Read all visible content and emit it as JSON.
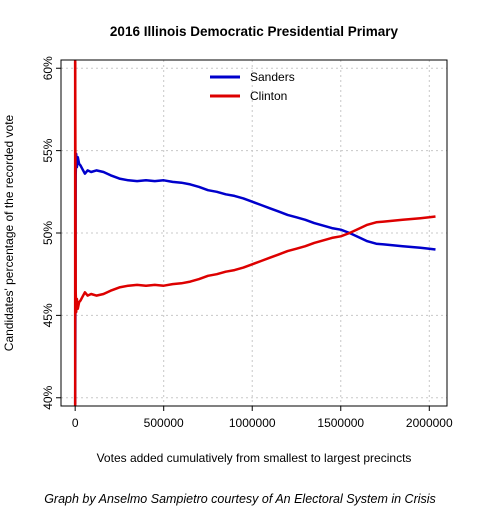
{
  "chart_data": {
    "type": "line",
    "title": "2016 Illinois Democratic Presidential Primary",
    "xlabel": "Votes added cumulatively from smallest to largest precincts",
    "ylabel": "Candidates' percentage of the recorded vote",
    "xlim": [
      -80000,
      2100000
    ],
    "ylim": [
      39.5,
      60.5
    ],
    "x_ticks": [
      0,
      500000,
      1000000,
      1500000,
      2000000
    ],
    "x_tick_labels": [
      "0",
      "500000",
      "1000000",
      "1500000",
      "2000000"
    ],
    "y_ticks": [
      40,
      45,
      50,
      55,
      60
    ],
    "y_tick_labels": [
      "40%",
      "45%",
      "50%",
      "55%",
      "60%"
    ],
    "grid": true,
    "legend_position": "top-center",
    "vline_x": 0,
    "series": [
      {
        "name": "Sanders",
        "color": "#0000cc",
        "x": [
          0,
          3000,
          6000,
          10000,
          15000,
          22000,
          30000,
          40000,
          55000,
          70000,
          90000,
          120000,
          160000,
          200000,
          250000,
          300000,
          350000,
          400000,
          450000,
          500000,
          550000,
          600000,
          650000,
          700000,
          750000,
          800000,
          850000,
          900000,
          950000,
          1000000,
          1050000,
          1100000,
          1150000,
          1200000,
          1250000,
          1300000,
          1350000,
          1400000,
          1450000,
          1500000,
          1550000,
          1600000,
          1650000,
          1700000,
          1750000,
          1800000,
          1850000,
          1900000,
          1950000,
          2000000,
          2035000
        ],
        "values": [
          39.6,
          53.5,
          54.8,
          54.0,
          54.6,
          54.2,
          54.1,
          53.9,
          53.6,
          53.8,
          53.7,
          53.8,
          53.7,
          53.5,
          53.3,
          53.2,
          53.15,
          53.2,
          53.15,
          53.2,
          53.1,
          53.05,
          52.95,
          52.8,
          52.6,
          52.5,
          52.35,
          52.25,
          52.1,
          51.9,
          51.7,
          51.5,
          51.3,
          51.1,
          50.95,
          50.8,
          50.6,
          50.45,
          50.3,
          50.2,
          50.0,
          49.75,
          49.5,
          49.35,
          49.3,
          49.25,
          49.2,
          49.15,
          49.1,
          49.05,
          49.0
        ]
      },
      {
        "name": "Clinton",
        "color": "#dd0000",
        "x": [
          0,
          3000,
          6000,
          10000,
          15000,
          22000,
          30000,
          40000,
          55000,
          70000,
          90000,
          120000,
          160000,
          200000,
          250000,
          300000,
          350000,
          400000,
          450000,
          500000,
          550000,
          600000,
          650000,
          700000,
          750000,
          800000,
          850000,
          900000,
          950000,
          1000000,
          1050000,
          1100000,
          1150000,
          1200000,
          1250000,
          1300000,
          1350000,
          1400000,
          1450000,
          1500000,
          1550000,
          1600000,
          1650000,
          1700000,
          1750000,
          1800000,
          1850000,
          1900000,
          1950000,
          2000000,
          2035000
        ],
        "values": [
          60.4,
          46.5,
          45.2,
          46.0,
          45.4,
          45.8,
          45.9,
          46.1,
          46.4,
          46.2,
          46.3,
          46.2,
          46.3,
          46.5,
          46.7,
          46.8,
          46.85,
          46.8,
          46.85,
          46.8,
          46.9,
          46.95,
          47.05,
          47.2,
          47.4,
          47.5,
          47.65,
          47.75,
          47.9,
          48.1,
          48.3,
          48.5,
          48.7,
          48.9,
          49.05,
          49.2,
          49.4,
          49.55,
          49.7,
          49.8,
          50.0,
          50.25,
          50.5,
          50.65,
          50.7,
          50.75,
          50.8,
          50.85,
          50.9,
          50.95,
          51.0
        ]
      }
    ]
  },
  "footer": {
    "credit": "Graph by Anselmo Sampietro courtesy of An Electoral System in Crisis"
  }
}
